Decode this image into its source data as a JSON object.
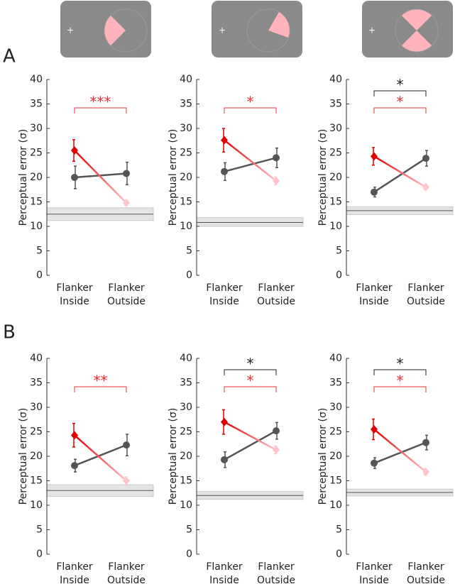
{
  "panel_labels": [
    "A",
    "B"
  ],
  "chart_data": [
    {
      "type": "line",
      "ylabel": "Perceptual error (σ)",
      "categories": [
        [
          "Flanker",
          "Inside"
        ],
        [
          "Flanker",
          "Outside"
        ]
      ],
      "ylim": [
        0,
        40
      ],
      "yticks": [
        0,
        5,
        10,
        15,
        20,
        25,
        30,
        35,
        40
      ],
      "baseline": 12.5,
      "baseline_band": [
        11.2,
        13.8
      ],
      "series": [
        {
          "marker": "circle",
          "color": "#555555",
          "values": [
            20.0,
            20.8
          ],
          "errors": [
            2.3,
            2.3
          ]
        },
        {
          "marker": "diamond",
          "color": "#e00000",
          "colors": [
            "#e00000",
            "#ffc4cc"
          ],
          "values": [
            25.5,
            14.8
          ],
          "errors": [
            2.2,
            0.5
          ]
        }
      ],
      "significance": [
        {
          "label": "***",
          "color": "#f03030"
        }
      ]
    },
    {
      "type": "line",
      "ylabel": "Perceptual error (σ)",
      "categories": [
        [
          "Flanker",
          "Inside"
        ],
        [
          "Flanker",
          "Outside"
        ]
      ],
      "ylim": [
        0,
        40
      ],
      "yticks": [
        0,
        5,
        10,
        15,
        20,
        25,
        30,
        35,
        40
      ],
      "baseline": 10.8,
      "baseline_band": [
        10.0,
        11.8
      ],
      "series": [
        {
          "marker": "circle",
          "color": "#555555",
          "values": [
            21.2,
            24.0
          ],
          "errors": [
            1.8,
            2.0
          ]
        },
        {
          "marker": "diamond",
          "color": "#e00000",
          "colors": [
            "#e00000",
            "#ffc4cc"
          ],
          "values": [
            27.6,
            19.3
          ],
          "errors": [
            2.4,
            0.8
          ]
        }
      ],
      "significance": [
        {
          "label": "*",
          "color": "#f03030"
        }
      ]
    },
    {
      "type": "line",
      "ylabel": "Perceptual error (σ)",
      "categories": [
        [
          "Flanker",
          "Inside"
        ],
        [
          "Flanker",
          "Outside"
        ]
      ],
      "ylim": [
        0,
        40
      ],
      "yticks": [
        0,
        5,
        10,
        15,
        20,
        25,
        30,
        35,
        40
      ],
      "baseline": 13.2,
      "baseline_band": [
        12.4,
        14.0
      ],
      "series": [
        {
          "marker": "circle",
          "color": "#555555",
          "values": [
            17.0,
            23.9
          ],
          "errors": [
            1.0,
            1.6
          ]
        },
        {
          "marker": "diamond",
          "color": "#e00000",
          "colors": [
            "#e00000",
            "#ffc4cc"
          ],
          "values": [
            24.3,
            18.0
          ],
          "errors": [
            1.8,
            0.5
          ]
        }
      ],
      "significance": [
        {
          "label": "*",
          "color": "#222222"
        },
        {
          "label": "*",
          "color": "#f03030"
        }
      ]
    },
    {
      "type": "line",
      "ylabel": "Perceptual error (σ)",
      "categories": [
        [
          "Flanker",
          "Inside"
        ],
        [
          "Flanker",
          "Outside"
        ]
      ],
      "ylim": [
        0,
        40
      ],
      "yticks": [
        0,
        5,
        10,
        15,
        20,
        25,
        30,
        35,
        40
      ],
      "baseline": 13.0,
      "baseline_band": [
        11.8,
        14.2
      ],
      "series": [
        {
          "marker": "circle",
          "color": "#555555",
          "values": [
            18.1,
            22.3
          ],
          "errors": [
            1.3,
            2.2
          ]
        },
        {
          "marker": "diamond",
          "color": "#e00000",
          "colors": [
            "#e00000",
            "#ffc4cc"
          ],
          "values": [
            24.3,
            15.0
          ],
          "errors": [
            2.4,
            0.8
          ]
        }
      ],
      "significance": [
        {
          "label": "**",
          "color": "#f03030"
        }
      ]
    },
    {
      "type": "line",
      "ylabel": "Perceptual error (σ)",
      "categories": [
        [
          "Flanker",
          "Inside"
        ],
        [
          "Flanker",
          "Outside"
        ]
      ],
      "ylim": [
        0,
        40
      ],
      "yticks": [
        0,
        5,
        10,
        15,
        20,
        25,
        30,
        35,
        40
      ],
      "baseline": 12.0,
      "baseline_band": [
        11.2,
        12.8
      ],
      "series": [
        {
          "marker": "circle",
          "color": "#555555",
          "values": [
            19.3,
            25.2
          ],
          "errors": [
            1.6,
            1.7
          ]
        },
        {
          "marker": "diamond",
          "color": "#e00000",
          "colors": [
            "#e00000",
            "#ffc4cc"
          ],
          "values": [
            27.0,
            21.3
          ],
          "errors": [
            2.5,
            0.8
          ]
        }
      ],
      "significance": [
        {
          "label": "*",
          "color": "#222222"
        },
        {
          "label": "*",
          "color": "#f03030"
        }
      ]
    },
    {
      "type": "line",
      "ylabel": "Perceptual error (σ)",
      "categories": [
        [
          "Flanker",
          "Inside"
        ],
        [
          "Flanker",
          "Outside"
        ]
      ],
      "ylim": [
        0,
        40
      ],
      "yticks": [
        0,
        5,
        10,
        15,
        20,
        25,
        30,
        35,
        40
      ],
      "baseline": 12.6,
      "baseline_band": [
        11.9,
        13.3
      ],
      "series": [
        {
          "marker": "circle",
          "color": "#555555",
          "values": [
            18.6,
            22.8
          ],
          "errors": [
            1.1,
            1.5
          ]
        },
        {
          "marker": "diamond",
          "color": "#e00000",
          "colors": [
            "#e00000",
            "#ffc4cc"
          ],
          "values": [
            25.5,
            16.8
          ],
          "errors": [
            2.1,
            0.6
          ]
        }
      ],
      "significance": [
        {
          "label": "*",
          "color": "#222222"
        },
        {
          "label": "*",
          "color": "#f03030"
        }
      ]
    }
  ]
}
